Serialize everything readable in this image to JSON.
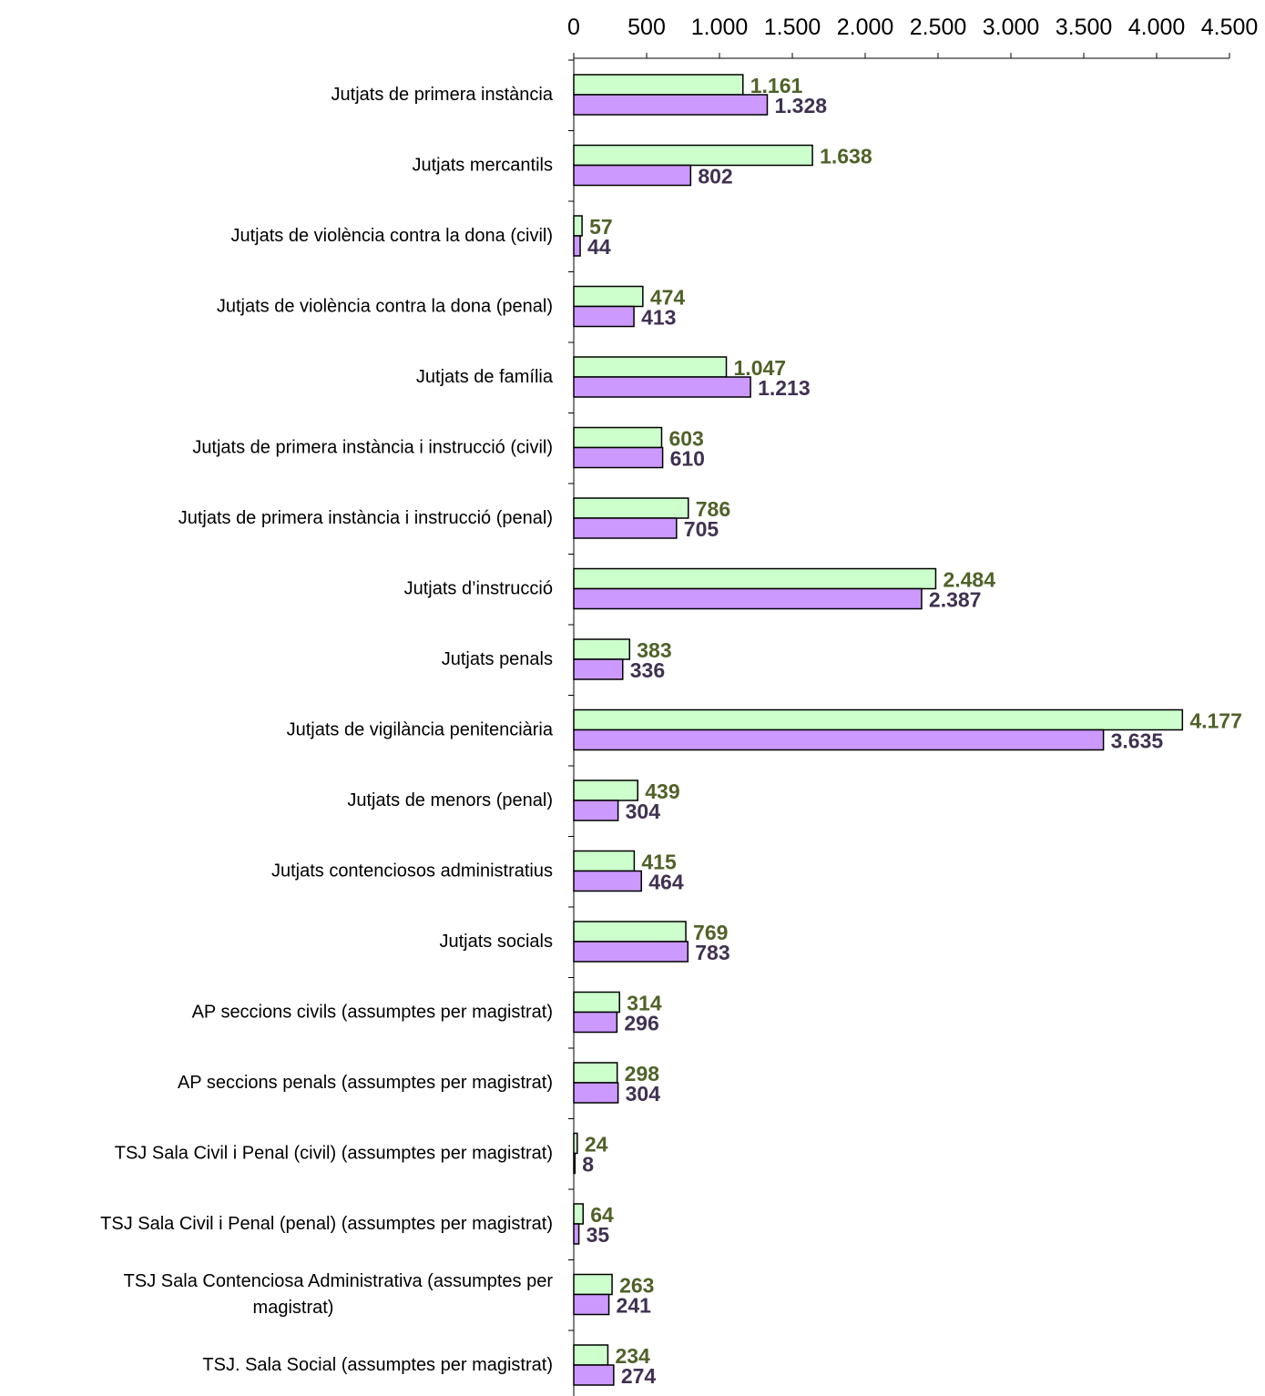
{
  "chart_data": {
    "type": "bar",
    "orientation": "horizontal",
    "xlim": [
      0,
      4500
    ],
    "ticks": [
      0,
      500,
      1000,
      1500,
      2000,
      2500,
      3000,
      3500,
      4000,
      4500
    ],
    "tick_labels": [
      "0",
      "500",
      "1.000",
      "1.500",
      "2.000",
      "2.500",
      "3.000",
      "3.500",
      "4.000",
      "4.500"
    ],
    "axis_position": "top",
    "grid": false,
    "legend": "none",
    "categories": [
      [
        "Jutjats de primera instància"
      ],
      [
        "Jutjats mercantils"
      ],
      [
        "Jutjats de violència contra la dona (civil)"
      ],
      [
        "Jutjats de violència contra la dona (penal)"
      ],
      [
        "Jutjats de família"
      ],
      [
        "Jutjats de primera instància i instrucció (civil)"
      ],
      [
        "Jutjats de primera instància i instrucció (penal)"
      ],
      [
        "Jutjats d’instrucció"
      ],
      [
        "Jutjats penals"
      ],
      [
        "Jutjats de vigilància penitenciària"
      ],
      [
        "Jutjats de menors (penal)"
      ],
      [
        "Jutjats contenciosos administratius"
      ],
      [
        "Jutjats socials"
      ],
      [
        "AP seccions civils   (assumptes per magistrat)"
      ],
      [
        "AP seccions penals  (assumptes per magistrat)"
      ],
      [
        "TSJ Sala Civil i Penal (civil) (assumptes per magistrat)"
      ],
      [
        "TSJ Sala Civil i Penal (penal) (assumptes per magistrat)"
      ],
      [
        "TSJ Sala Contenciosa Administrativa  (assumptes per",
        "magistrat)"
      ],
      [
        "TSJ. Sala Social    (assumptes per magistrat)"
      ]
    ],
    "series": [
      {
        "color": "#ccffcc",
        "label_color": "#4f6228",
        "values": [
          1161,
          1638,
          57,
          474,
          1047,
          603,
          786,
          2484,
          383,
          4177,
          439,
          415,
          769,
          314,
          298,
          24,
          64,
          263,
          234
        ],
        "value_labels": [
          "1.161",
          "1.638",
          "57",
          "474",
          "1.047",
          "603",
          "786",
          "2.484",
          "383",
          "4.177",
          "439",
          "415",
          "769",
          "314",
          "298",
          "24",
          "64",
          "263",
          "234"
        ]
      },
      {
        "color": "#cc99ff",
        "label_color": "#403152",
        "values": [
          1328,
          802,
          44,
          413,
          1213,
          610,
          705,
          2387,
          336,
          3635,
          304,
          464,
          783,
          296,
          304,
          8,
          35,
          241,
          274
        ],
        "value_labels": [
          "1.328",
          "802",
          "44",
          "413",
          "1.213",
          "610",
          "705",
          "2.387",
          "336",
          "3.635",
          "304",
          "464",
          "783",
          "296",
          "304",
          "8",
          "35",
          "241",
          "274"
        ]
      }
    ]
  }
}
